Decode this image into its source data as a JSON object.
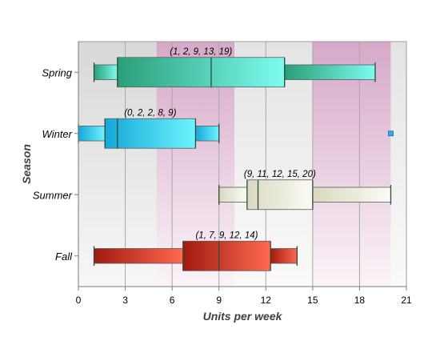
{
  "chart_data": {
    "type": "boxplot",
    "title": "",
    "xlabel": "Units per week",
    "ylabel": "Season",
    "xlim": [
      0,
      21
    ],
    "x_ticks": [
      "0",
      "3",
      "6",
      "9",
      "12",
      "15",
      "18",
      "21"
    ],
    "orientation": "horizontal",
    "grid": true,
    "categories": [
      "Spring",
      "Winter",
      "Summer",
      "Fall"
    ],
    "boxes": [
      {
        "category": "Spring",
        "min": 1,
        "q1": 2.5,
        "median": 8.5,
        "q3": 13.2,
        "max": 19,
        "label": "(1, 2, 9, 13, 19)",
        "color_start": "#2a9e78",
        "color_end": "#7dfcf0",
        "outliers": []
      },
      {
        "category": "Winter",
        "min": 0,
        "q1": 1.7,
        "median": 2.5,
        "q3": 7.5,
        "max": 9,
        "label": "(0, 2, 2, 8, 9)",
        "color_start": "#15a8d8",
        "color_end": "#6ef4ff",
        "outliers": [
          20
        ]
      },
      {
        "category": "Summer",
        "min": 9,
        "q1": 10.8,
        "median": 11.5,
        "q3": 15,
        "max": 20,
        "label": "(9, 11, 12, 15, 20)",
        "color_start": "#d9d9c0",
        "color_end": "#fbfbf4",
        "outliers": []
      },
      {
        "category": "Fall",
        "min": 1,
        "q1": 6.7,
        "median": 9,
        "q3": 12.3,
        "max": 14,
        "label": "(1, 7, 9, 12, 14)",
        "color_start": "#a01a10",
        "color_end": "#ff6a50",
        "outliers": []
      }
    ],
    "colors": {
      "band_gray": "#d8d8d8",
      "band_pink": "#d6a8c8",
      "outlier": "#3aa8e8",
      "border": "#9a9a9a"
    }
  }
}
